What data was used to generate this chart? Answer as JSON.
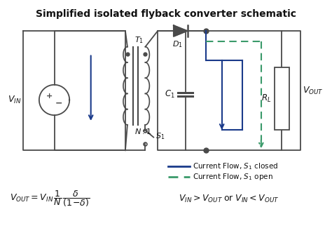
{
  "title": "Simplified isolated flyback converter schematic",
  "title_fontsize": 10,
  "bg_color": "#ffffff",
  "border_color": "#4a4a4a",
  "blue_color": "#1a3a8a",
  "green_color": "#3a9a6a",
  "text_color": "#111111",
  "legend_solid": "Current Flow, $S_1$ closed",
  "legend_dashed": "Current Flow, $S_1$ open"
}
